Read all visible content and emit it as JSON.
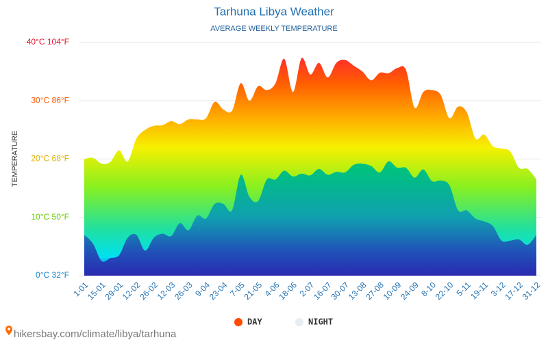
{
  "chart_data": {
    "type": "area",
    "title": "Tarhuna Libya Weather",
    "subtitle": "AVERAGE WEEKLY TEMPERATURE",
    "y_label": "TEMPERATURE",
    "source": "hikersbay.com/climate/libya/tarhuna",
    "categories": [
      "1-01",
      null,
      "15-01",
      null,
      "29-01",
      null,
      "12-02",
      null,
      "26-02",
      null,
      "12-03",
      null,
      "26-03",
      null,
      "9-04",
      null,
      "23-04",
      null,
      "7-05",
      null,
      "21-05",
      null,
      "4-06",
      null,
      "18-06",
      null,
      "2-07",
      null,
      "16-07",
      null,
      "30-07",
      null,
      "13-08",
      null,
      "27-08",
      null,
      "10-09",
      null,
      "24-09",
      null,
      "8-10",
      null,
      "22-10",
      null,
      "5-11",
      null,
      "19-11",
      null,
      "3-12",
      null,
      "17-12",
      null,
      "31-12"
    ],
    "series": [
      {
        "name": "DAY",
        "color": "#ff4a00",
        "values": [
          20,
          20.2,
          19.2,
          19.5,
          21.5,
          19.6,
          23.5,
          25,
          25.7,
          25.8,
          26.5,
          26,
          26.8,
          26.8,
          27,
          29.8,
          28.5,
          28.3,
          33,
          30,
          32.5,
          31.8,
          33,
          37.2,
          31.5,
          37.3,
          34.5,
          36.5,
          34,
          36.5,
          37,
          36,
          35,
          33.5,
          34.8,
          34.7,
          35.6,
          35.3,
          28.8,
          31.5,
          31.8,
          31,
          27,
          29,
          28,
          23.5,
          24.2,
          22.2,
          21.8,
          21.3,
          18.5,
          18.3,
          16.5
        ]
      },
      {
        "name": "NIGHT",
        "color": "#e6edf3",
        "values": [
          7,
          5.5,
          2.5,
          3,
          3.5,
          6.5,
          7,
          4.3,
          6.5,
          7.2,
          6.8,
          9,
          7.8,
          10.3,
          9.8,
          12.3,
          12.3,
          11.2,
          17.3,
          13.5,
          12.8,
          16.5,
          16.5,
          18,
          17,
          17.5,
          17.2,
          18.3,
          17.3,
          17.8,
          17.7,
          19,
          19.2,
          18.8,
          17.7,
          19.6,
          18.5,
          18.5,
          16.8,
          18.2,
          16.2,
          16.3,
          15.5,
          11.2,
          11.2,
          9.8,
          9.3,
          8.5,
          6,
          6,
          6.2,
          5.3,
          7
        ]
      }
    ],
    "ylim": [
      0,
      40
    ],
    "yticks": [
      {
        "value": 0,
        "label": "0°C 32°F"
      },
      {
        "value": 10,
        "label": "10°C 50°F"
      },
      {
        "value": 20,
        "label": "20°C 68°F"
      },
      {
        "value": 30,
        "label": "30°C 86°F"
      },
      {
        "value": 40,
        "label": "40°C 104°F"
      }
    ],
    "ytick_colors": [
      "#1e88d0",
      "#66cc00",
      "#e0b000",
      "#ff5a00",
      "#e8102a"
    ],
    "grid": true,
    "legend": "bottom"
  }
}
